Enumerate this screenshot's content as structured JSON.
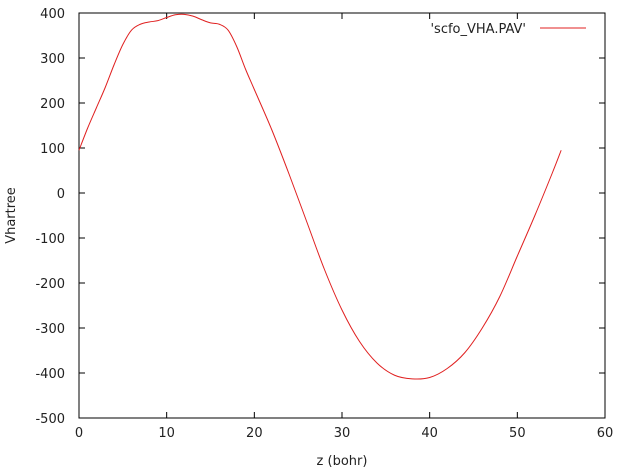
{
  "chart_data": {
    "type": "line",
    "title": "",
    "xlabel": "z (bohr)",
    "ylabel": "Vhartree",
    "xlim": [
      0,
      60
    ],
    "ylim": [
      -500,
      400
    ],
    "xticks": [
      0,
      10,
      20,
      30,
      40,
      50,
      60
    ],
    "yticks": [
      -500,
      -400,
      -300,
      -200,
      -100,
      0,
      100,
      200,
      300,
      400
    ],
    "xtick_labels": [
      "0",
      "10",
      "20",
      "30",
      "40",
      "50",
      "60"
    ],
    "ytick_labels": [
      "-500",
      "-400",
      "-300",
      "-200",
      "-100",
      "0",
      "100",
      "200",
      "300",
      "400"
    ],
    "grid": false,
    "legend_position": "top-right",
    "series": [
      {
        "name": "'scfo_VHA.PAV'",
        "color": "#e02020",
        "x": [
          0,
          1,
          2,
          3,
          4,
          5,
          6,
          7,
          8,
          9,
          10,
          11,
          12,
          13,
          14,
          15,
          16,
          17,
          18,
          19,
          20,
          22,
          24,
          26,
          28,
          30,
          32,
          34,
          36,
          38,
          40,
          42,
          44,
          46,
          48,
          50,
          52,
          54,
          55
        ],
        "y": [
          95,
          145,
          190,
          235,
          285,
          330,
          362,
          375,
          380,
          383,
          390,
          396,
          397,
          393,
          385,
          378,
          375,
          362,
          325,
          275,
          230,
          140,
          40,
          -65,
          -170,
          -260,
          -330,
          -378,
          -405,
          -413,
          -410,
          -390,
          -355,
          -300,
          -230,
          -140,
          -50,
          45,
          95
        ]
      }
    ]
  }
}
